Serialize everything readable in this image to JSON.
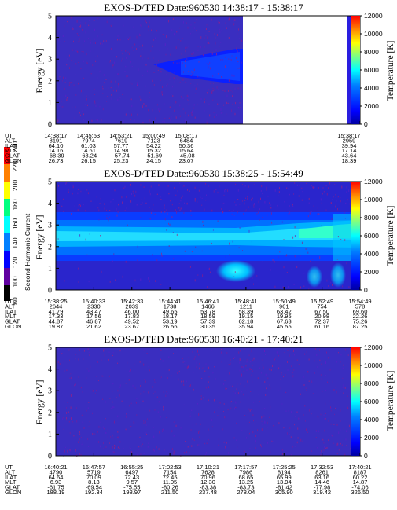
{
  "sidebar": {
    "label": "Second Harmonic Current",
    "ticks": [
      "80",
      "100",
      "120",
      "140",
      "160",
      "180",
      "200",
      "220",
      "240"
    ]
  },
  "chart_data": [
    {
      "type": "heatmap",
      "title": "EXOS-D/TED   Date:960530   14:38:17 - 15:38:17",
      "ylabel": "Energy [eV]",
      "ylim": [
        0,
        5
      ],
      "yticks": [
        "0",
        "1",
        "2",
        "3",
        "4",
        "5"
      ],
      "colorbar_label": "Temperature [K]",
      "colorbar_ticks": [
        "0",
        "2000",
        "4000",
        "6000",
        "8000",
        "10000",
        "12000"
      ],
      "colorbar_range": [
        0,
        12000
      ],
      "orbit_rows": [
        "UT",
        "ALT",
        "ILAT",
        "MLT",
        "GLAT",
        "GLON"
      ],
      "orbit_columns": [
        [
          "14:38:17",
          "8191",
          "64.10",
          "14.16",
          "-68.39",
          "26.73"
        ],
        [
          "14:45:53",
          "7974",
          "61.03",
          "14.61",
          "-63.24",
          "26.15"
        ],
        [
          "14:53:21",
          "7619",
          "57.77",
          "14.98",
          "-57.74",
          "25.23"
        ],
        [
          "15:00:49",
          "7123",
          "54.22",
          "15.32",
          "-51.69",
          "24.15"
        ],
        [
          "15:08:17",
          "6484",
          "50.36",
          "15.64",
          "-45.08",
          "23.07"
        ]
      ],
      "orbit_end_column": [
        "15:38:17",
        "2959",
        "39.94",
        "17.14",
        "43.64",
        "18.39"
      ]
    },
    {
      "type": "heatmap",
      "title": "EXOS-D/TED   Date:960530   15:38:25 - 15:54:49",
      "ylabel": "Energy [eV]",
      "ylim": [
        0,
        5
      ],
      "yticks": [
        "0",
        "1",
        "2",
        "3",
        "4",
        "5"
      ],
      "colorbar_label": "Temperature [K]",
      "colorbar_ticks": [
        "0",
        "2000",
        "4000",
        "6000",
        "8000",
        "10000",
        "12000"
      ],
      "colorbar_range": [
        0,
        12000
      ],
      "orbit_rows": [
        "UT",
        "ALT",
        "ILAT",
        "MLT",
        "GLAT",
        "GLON"
      ],
      "orbit_columns": [
        [
          "15:38:25",
          "2644",
          "41.79",
          "17.33",
          "44.87",
          "19.87"
        ],
        [
          "15:40:33",
          "2330",
          "43.47",
          "17.56",
          "46.87",
          "21.62"
        ],
        [
          "15:42:33",
          "2039",
          "46.00",
          "17.83",
          "49.52",
          "23.67"
        ],
        [
          "15:44:41",
          "1738",
          "49.65",
          "18.17",
          "53.19",
          "26.56"
        ],
        [
          "15:46:41",
          "1466",
          "53.78",
          "18.59",
          "57.39",
          "30.35"
        ],
        [
          "15:48:41",
          "1211",
          "58.39",
          "19.15",
          "62.18",
          "35.94"
        ],
        [
          "15:50:49",
          "961",
          "63.42",
          "19.95",
          "67.63",
          "45.55"
        ],
        [
          "15:52:49",
          "754",
          "67.50",
          "20.98",
          "72.37",
          "61.16"
        ],
        [
          "15:54:49",
          "578",
          "69.60",
          "22.26",
          "75.26",
          "87.25"
        ]
      ]
    },
    {
      "type": "heatmap",
      "title": "EXOS-D/TED   Date:960530   16:40:21 - 17:40:21",
      "ylabel": "Energy [eV]",
      "ylim": [
        0,
        5
      ],
      "yticks": [
        "0",
        "1",
        "2",
        "3",
        "4",
        "5"
      ],
      "colorbar_label": "Temperature [K]",
      "colorbar_ticks": [
        "0",
        "2000",
        "4000",
        "6000",
        "8000",
        "10000",
        "12000"
      ],
      "colorbar_range": [
        0,
        12000
      ],
      "orbit_rows": [
        "UT",
        "ALT",
        "ILAT",
        "MLT",
        "GLAT",
        "GLON"
      ],
      "orbit_columns": [
        [
          "16:40:21",
          "4790",
          "64.64",
          "6.93",
          "-61.75",
          "188.19"
        ],
        [
          "16:47:57",
          "5719",
          "70.09",
          "8.13",
          "-69.54",
          "192.34"
        ],
        [
          "16:55:25",
          "6497",
          "72.43",
          "9.57",
          "-75.55",
          "198.97"
        ],
        [
          "17:02:53",
          "7154",
          "72.45",
          "11.05",
          "-80.26",
          "211.50"
        ],
        [
          "17:10:21",
          "7628",
          "70.96",
          "12.30",
          "-83.38",
          "237.48"
        ],
        [
          "17:17:57",
          "7986",
          "68.65",
          "13.25",
          "-83.73",
          "278.04"
        ],
        [
          "17:25:25",
          "8194",
          "65.99",
          "13.94",
          "-81.42",
          "305.90"
        ],
        [
          "17:32:53",
          "8261",
          "63.16",
          "14.46",
          "-77.98",
          "319.42"
        ],
        [
          "17:40:21",
          "8187",
          "60.22",
          "14.87",
          "-74.06",
          "326.50"
        ]
      ]
    }
  ]
}
